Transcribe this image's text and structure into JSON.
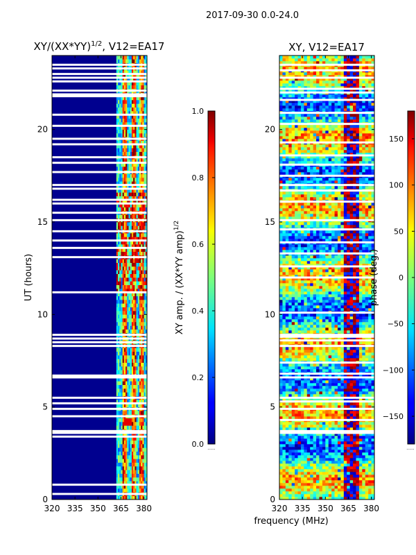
{
  "suptitle": "2017-09-30 0.0-24.0",
  "xlabel_shared": "frequency (MHz)",
  "chart_data": [
    {
      "type": "heatmap",
      "title_main": "XY/(XX*YY)",
      "title_sup": "1/2",
      "title_tail": ", V12=EA17",
      "ylabel": "UT (hours)",
      "xlim": [
        320,
        382
      ],
      "ylim": [
        0,
        24
      ],
      "xticks": [
        320,
        335,
        350,
        365,
        380
      ],
      "yticks": [
        0,
        5,
        10,
        15,
        20
      ],
      "colorbar": {
        "label_main": "XY amp. / (XX*YY amp)",
        "label_sup": "1/2",
        "range": [
          0.0,
          1.0
        ],
        "ticks": [
          "0.0",
          "0.2",
          "0.4",
          "0.6",
          "0.8",
          "1.0"
        ],
        "tick_values": [
          0.0,
          0.2,
          0.4,
          0.6,
          0.8,
          1.0
        ],
        "offset_label": "......"
      },
      "colormap": "jet",
      "gap_rows_ut": [
        0.3,
        0.8,
        3.4,
        3.6,
        3.7,
        4.5,
        4.9,
        5.2,
        5.5,
        6.6,
        6.7,
        8.3,
        8.5,
        8.7,
        8.9,
        11.2,
        13.1,
        13.6,
        14.0,
        14.5,
        15.1,
        15.5,
        16.0,
        16.2,
        16.8,
        17.0,
        17.7,
        18.2,
        18.5,
        19.2,
        19.5,
        20.2,
        20.8,
        21.8,
        21.9,
        22.1,
        22.6,
        22.8,
        23.0,
        23.3,
        23.5
      ]
    },
    {
      "type": "heatmap",
      "title": "XY, V12=EA17",
      "xlim": [
        320,
        382
      ],
      "ylim": [
        0,
        24
      ],
      "xticks": [
        320,
        335,
        350,
        365,
        380
      ],
      "yticks": [
        0,
        5,
        10,
        15,
        20
      ],
      "colorbar": {
        "label": "phase (deg.)",
        "range": [
          -180,
          180
        ],
        "ticks": [
          "−150",
          "−100",
          "−50",
          "0",
          "50",
          "100",
          "150"
        ],
        "tick_values": [
          -150,
          -100,
          -50,
          0,
          50,
          100,
          150
        ],
        "offset_label": "......"
      },
      "colormap": "jet",
      "gap_rows_ut": [
        3.6,
        3.7,
        4.3,
        4.9,
        5.3,
        5.5,
        6.6,
        6.8,
        7.4,
        8.3,
        8.6,
        8.8,
        8.9,
        10.1,
        12.0,
        12.6,
        13.3,
        13.9,
        14.6,
        15.1,
        16.1,
        16.7,
        17.0,
        17.5,
        18.1,
        18.6,
        19.3,
        20.3,
        20.9,
        21.6,
        22.0,
        22.2,
        22.8,
        23.2,
        23.5
      ]
    }
  ]
}
